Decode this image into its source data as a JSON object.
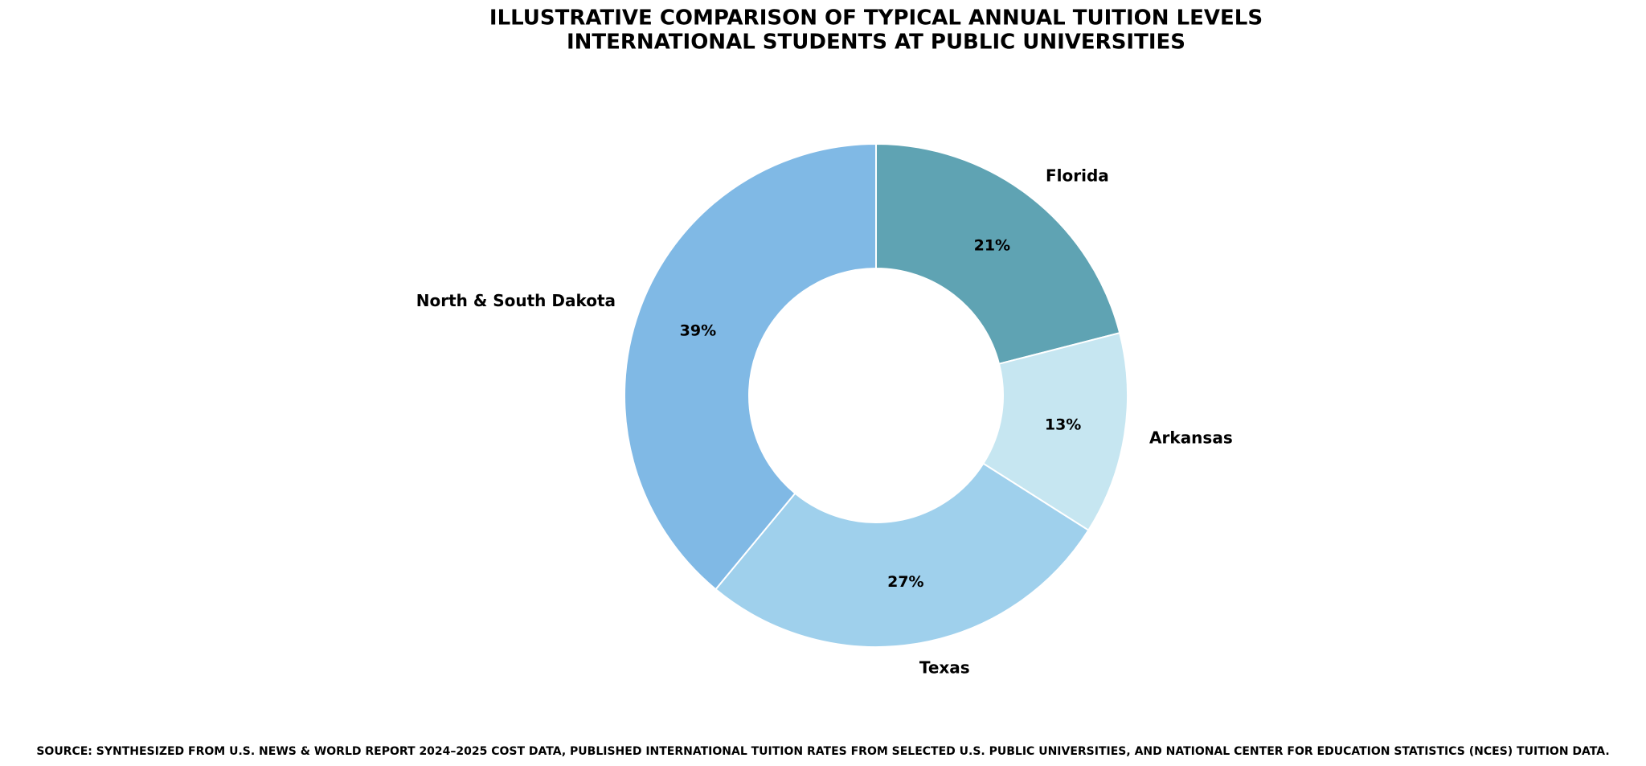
{
  "chart_data": {
    "type": "donut",
    "title": [
      "ILLUSTRATIVE COMPARISON OF TYPICAL ANNUAL TUITION LEVELS",
      "INTERNATIONAL STUDENTS AT PUBLIC UNIVERSITIES"
    ],
    "categories": [
      "Florida",
      "Arkansas",
      "Texas",
      "North & South Dakota"
    ],
    "values": [
      21,
      13,
      27,
      39
    ],
    "value_labels": [
      "21%",
      "13%",
      "27%",
      "39%"
    ],
    "colors": [
      "#5fa3b3",
      "#c6e6f1",
      "#9fd0ec",
      "#80b9e5"
    ],
    "source": "SOURCE: SYNTHESIZED FROM U.S. NEWS & WORLD REPORT 2024–2025 COST DATA, PUBLISHED INTERNATIONAL TUITION RATES FROM SELECTED U.S. PUBLIC UNIVERSITIES, AND NATIONAL CENTER FOR EDUCATION STATISTICS (NCES) TUITION DATA."
  }
}
